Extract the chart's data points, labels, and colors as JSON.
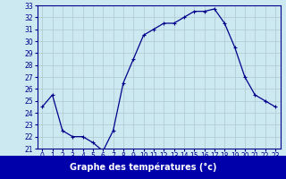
{
  "hours": [
    0,
    1,
    2,
    3,
    4,
    5,
    6,
    7,
    8,
    9,
    10,
    11,
    12,
    13,
    14,
    15,
    16,
    17,
    18,
    19,
    20,
    21,
    22,
    23
  ],
  "temperatures": [
    24.5,
    25.5,
    22.5,
    22.0,
    22.0,
    21.5,
    20.8,
    22.5,
    26.5,
    28.5,
    30.5,
    31.0,
    31.5,
    31.5,
    32.0,
    32.5,
    32.5,
    32.7,
    31.5,
    29.5,
    27.0,
    25.5,
    25.0,
    24.5
  ],
  "ylim": [
    21,
    33
  ],
  "yticks": [
    21,
    22,
    23,
    24,
    25,
    26,
    27,
    28,
    29,
    30,
    31,
    32,
    33
  ],
  "xticks": [
    0,
    1,
    2,
    3,
    4,
    5,
    6,
    7,
    8,
    9,
    10,
    11,
    12,
    13,
    14,
    15,
    16,
    17,
    18,
    19,
    20,
    21,
    22,
    23
  ],
  "xlabel": "Graphe des températures (°c)",
  "line_color": "#00008b",
  "marker": "+",
  "bg_color": "#cce8f0",
  "grid_color": "#b0c8d0",
  "label_bg": "#0000aa",
  "label_fg": "#ffffff",
  "tick_fontsize": 5.5,
  "label_fontsize": 7.0
}
